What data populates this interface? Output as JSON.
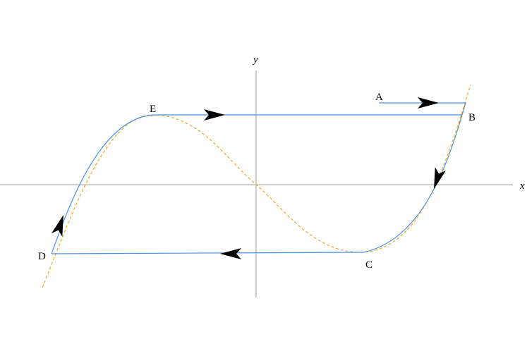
{
  "axes": {
    "x_label": "x",
    "y_label": "y"
  },
  "points": {
    "A": "A",
    "B": "B",
    "C": "C",
    "D": "D",
    "E": "E"
  },
  "colors": {
    "trajectory": "#4a90e2",
    "nullcline": "#f5a623",
    "axis": "#9e9e9e",
    "arrow": "#000000"
  }
}
